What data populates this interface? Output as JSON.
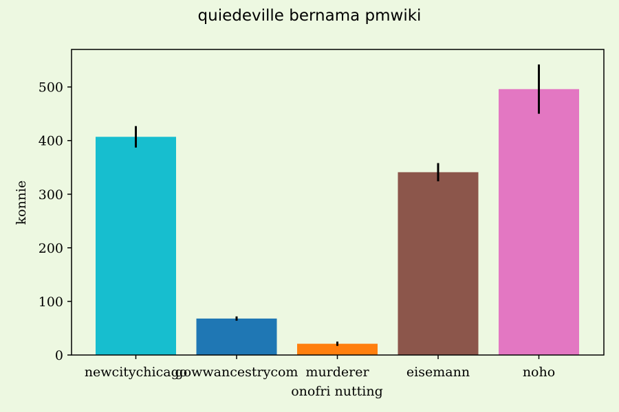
{
  "chart_data": {
    "type": "bar",
    "title": "quiedeville bernama pmwiki",
    "xlabel": "onofri nutting",
    "ylabel": "konnie",
    "categories": [
      "newcitychicago",
      "gowwancestrycom",
      "murderer",
      "eisemann",
      "noho"
    ],
    "values": [
      407,
      68,
      21,
      341,
      496
    ],
    "errors": [
      20,
      4,
      4,
      17,
      46
    ],
    "colors": [
      "#17becf",
      "#1f77b4",
      "#ff7f0e",
      "#8c564b",
      "#e377c2"
    ],
    "ylim": [
      0,
      570
    ],
    "yticks": [
      0,
      100,
      200,
      300,
      400,
      500
    ],
    "grid": false,
    "background": "#edf8e1"
  }
}
